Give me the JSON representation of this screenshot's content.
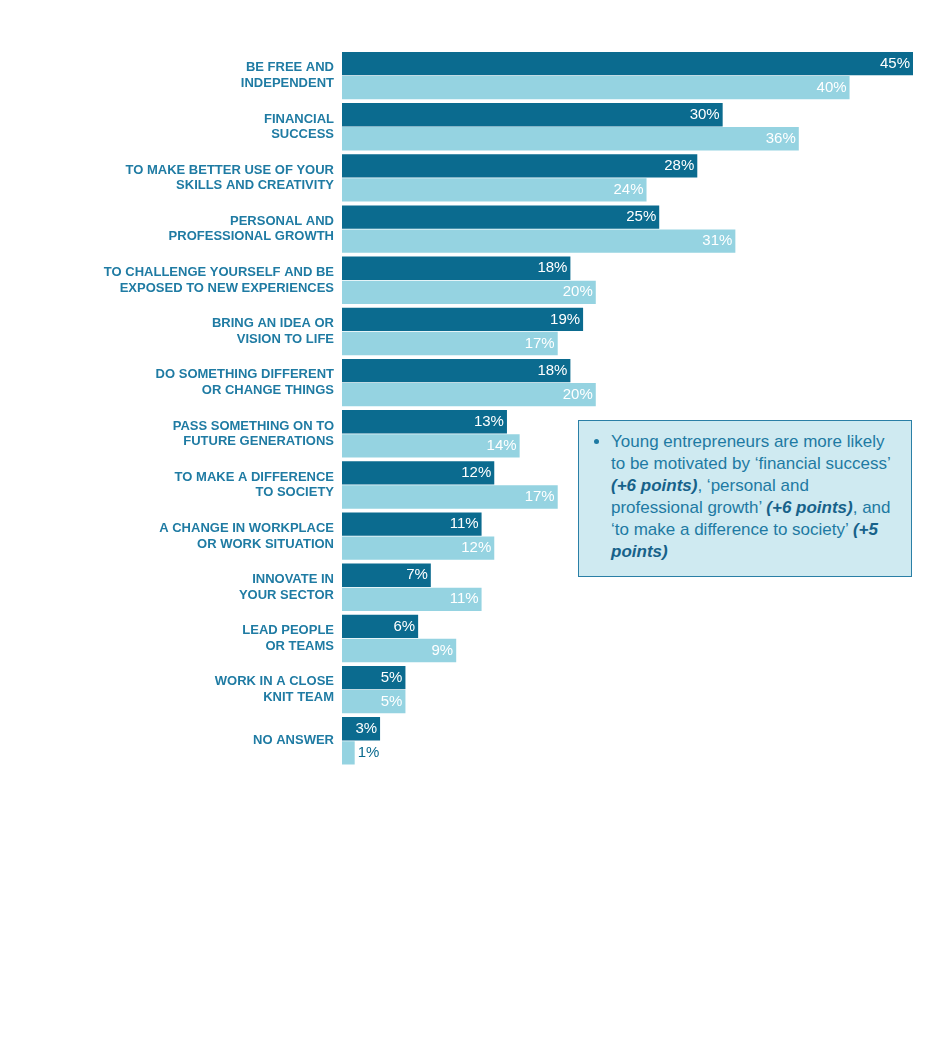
{
  "chart_data": {
    "type": "bar",
    "orientation": "horizontal",
    "categories": [
      "BE FREE AND INDEPENDENT",
      "FINANCIAL SUCCESS",
      "TO MAKE BETTER USE OF YOUR SKILLS AND CREATIVITY",
      "PERSONAL AND PROFESSIONAL GROWTH",
      "TO CHALLENGE YOURSELF AND BE EXPOSED TO NEW EXPERIENCES",
      "BRING AN IDEA OR VISION TO LIFE",
      "DO SOMETHING DIFFERENT OR CHANGE THINGS",
      "PASS SOMETHING ON TO FUTURE GENERATIONS",
      "TO MAKE A DIFFERENCE TO SOCIETY",
      "A CHANGE IN WORKPLACE OR WORK SITUATION",
      "INNOVATE IN YOUR SECTOR",
      "LEAD PEOPLE OR TEAMS",
      "WORK IN A CLOSE KNIT TEAM",
      "NO ANSWER"
    ],
    "series": [
      {
        "color": "#0b6b8f",
        "values": [
          45,
          30,
          28,
          25,
          18,
          19,
          18,
          13,
          12,
          11,
          7,
          6,
          5,
          3
        ],
        "value_labels": [
          "45%",
          "30%",
          "28%",
          "25%",
          "18%",
          "19%",
          "18%",
          "13%",
          "12%",
          "11%",
          "7%",
          "6%",
          "5%",
          "3%"
        ]
      },
      {
        "color": "#95d3e1",
        "values": [
          40,
          36,
          24,
          31,
          20,
          17,
          20,
          14,
          17,
          12,
          11,
          9,
          5,
          1
        ],
        "value_labels": [
          "40%",
          "36%",
          "24%",
          "31%",
          "20%",
          "17%",
          "20%",
          "14%",
          "17%",
          "12%",
          "11%",
          "9%",
          "5%",
          "1%"
        ]
      }
    ],
    "xlim": [
      0,
      45
    ],
    "grid": false,
    "data_labels": true,
    "tick_labels": "y",
    "annotation": "Young entrepreneurs are more likely to be motivated by ‘financial success’ (+6 points), ‘personal and professional growth’ (+6 points), and ‘to make a difference to society’ (+5 points)"
  }
}
